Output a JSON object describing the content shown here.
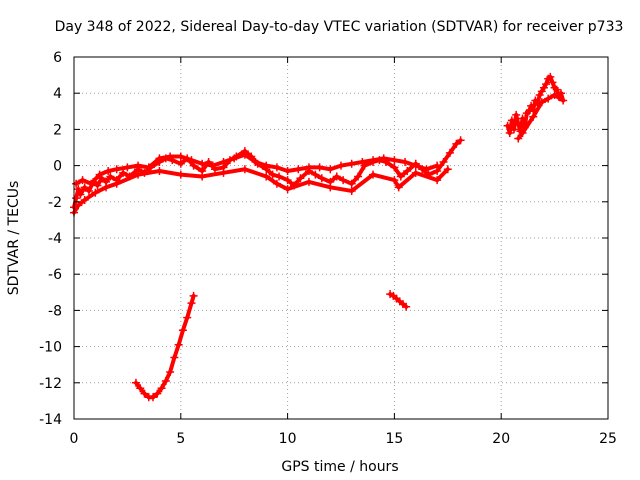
{
  "chart_data": {
    "type": "scatter",
    "title": "Day 348 of 2022, Sidereal Day-to-day VTEC variation (SDTVAR) for receiver p733",
    "xlabel": "GPS time / hours",
    "ylabel": "SDTVAR / TECUs",
    "xlim": [
      0,
      25
    ],
    "ylim": [
      -14,
      6
    ],
    "xticks": [
      0,
      5,
      10,
      15,
      20,
      25
    ],
    "yticks": [
      6,
      4,
      2,
      0,
      -2,
      -4,
      -6,
      -8,
      -10,
      -12,
      -14
    ],
    "grid": true,
    "marker": "plus",
    "color": "#ff0000",
    "series": [
      {
        "name": "main-band",
        "points": [
          [
            0.0,
            -2.3
          ],
          [
            0.1,
            -1.8
          ],
          [
            0.2,
            -1.3
          ],
          [
            0.3,
            -1.6
          ],
          [
            0.5,
            -1.2
          ],
          [
            0.7,
            -1.4
          ],
          [
            0.9,
            -0.9
          ],
          [
            1.1,
            -1.1
          ],
          [
            1.3,
            -0.7
          ],
          [
            1.5,
            -0.9
          ],
          [
            1.7,
            -0.6
          ],
          [
            2.0,
            -0.8
          ],
          [
            2.3,
            -0.4
          ],
          [
            2.6,
            -0.6
          ],
          [
            3.0,
            -0.2
          ],
          [
            3.3,
            -0.4
          ],
          [
            3.6,
            -0.1
          ],
          [
            4.0,
            0.2
          ],
          [
            4.3,
            0.4
          ],
          [
            4.6,
            0.3
          ],
          [
            5.0,
            0.1
          ],
          [
            5.3,
            0.4
          ],
          [
            5.6,
            0.0
          ],
          [
            6.0,
            -0.3
          ],
          [
            6.3,
            0.2
          ],
          [
            6.6,
            -0.2
          ],
          [
            7.0,
            -0.1
          ],
          [
            7.3,
            0.3
          ],
          [
            7.6,
            0.5
          ],
          [
            8.0,
            0.8
          ],
          [
            8.3,
            0.5
          ],
          [
            8.6,
            0.1
          ],
          [
            9.0,
            -0.2
          ],
          [
            9.3,
            -0.5
          ],
          [
            9.6,
            -0.6
          ],
          [
            10.0,
            -0.8
          ],
          [
            10.3,
            -1.1
          ],
          [
            10.6,
            -0.7
          ],
          [
            11.0,
            -0.3
          ],
          [
            11.3,
            -0.5
          ],
          [
            11.6,
            -0.7
          ],
          [
            12.0,
            -0.9
          ],
          [
            12.3,
            -0.6
          ],
          [
            12.6,
            -0.8
          ],
          [
            13.0,
            -1.0
          ],
          [
            13.3,
            -0.6
          ],
          [
            13.6,
            0.0
          ],
          [
            14.0,
            0.2
          ],
          [
            14.3,
            0.3
          ],
          [
            14.6,
            0.2
          ],
          [
            15.0,
            -0.1
          ],
          [
            15.3,
            -0.6
          ],
          [
            15.6,
            -0.3
          ],
          [
            16.0,
            0.1
          ],
          [
            16.3,
            -0.2
          ],
          [
            16.6,
            -0.5
          ],
          [
            17.0,
            -0.3
          ],
          [
            17.3,
            0.2
          ],
          [
            17.6,
            0.7
          ],
          [
            17.9,
            1.2
          ],
          [
            18.1,
            1.4
          ]
        ]
      },
      {
        "name": "main-band-upper",
        "points": [
          [
            0.1,
            -1.0
          ],
          [
            0.4,
            -0.8
          ],
          [
            0.8,
            -1.0
          ],
          [
            1.2,
            -0.5
          ],
          [
            1.6,
            -0.3
          ],
          [
            2.0,
            -0.2
          ],
          [
            2.5,
            -0.1
          ],
          [
            3.0,
            0.0
          ],
          [
            3.5,
            -0.1
          ],
          [
            4.0,
            0.4
          ],
          [
            4.5,
            0.5
          ],
          [
            5.0,
            0.5
          ],
          [
            5.5,
            0.3
          ],
          [
            6.0,
            0.1
          ],
          [
            6.5,
            0.0
          ],
          [
            7.0,
            0.2
          ],
          [
            7.5,
            0.4
          ],
          [
            8.0,
            0.6
          ],
          [
            8.5,
            0.2
          ],
          [
            9.0,
            0.0
          ],
          [
            9.5,
            -0.1
          ],
          [
            10.0,
            -0.3
          ],
          [
            10.5,
            -0.2
          ],
          [
            11.0,
            -0.1
          ],
          [
            11.5,
            -0.1
          ],
          [
            12.0,
            -0.2
          ],
          [
            12.5,
            0.0
          ],
          [
            13.0,
            0.1
          ],
          [
            13.5,
            0.2
          ],
          [
            14.0,
            0.3
          ],
          [
            14.5,
            0.4
          ],
          [
            15.0,
            0.3
          ],
          [
            15.5,
            0.2
          ],
          [
            16.0,
            0.0
          ],
          [
            16.5,
            -0.2
          ],
          [
            17.0,
            0.0
          ]
        ]
      },
      {
        "name": "main-band-lower",
        "points": [
          [
            0.0,
            -2.6
          ],
          [
            0.2,
            -2.2
          ],
          [
            0.5,
            -1.9
          ],
          [
            1.0,
            -1.5
          ],
          [
            1.5,
            -1.2
          ],
          [
            2.0,
            -1.0
          ],
          [
            3.0,
            -0.5
          ],
          [
            4.0,
            -0.3
          ],
          [
            5.0,
            -0.5
          ],
          [
            6.0,
            -0.6
          ],
          [
            7.0,
            -0.4
          ],
          [
            8.0,
            -0.2
          ],
          [
            9.0,
            -0.6
          ],
          [
            9.5,
            -1.0
          ],
          [
            10.0,
            -1.3
          ],
          [
            11.0,
            -0.9
          ],
          [
            12.0,
            -1.2
          ],
          [
            13.0,
            -1.4
          ],
          [
            14.0,
            -0.5
          ],
          [
            15.0,
            -0.8
          ],
          [
            15.2,
            -1.2
          ],
          [
            16.0,
            -0.4
          ],
          [
            17.0,
            -0.8
          ],
          [
            17.5,
            -0.2
          ]
        ]
      },
      {
        "name": "late-segment",
        "points": [
          [
            20.3,
            2.2
          ],
          [
            20.4,
            1.8
          ],
          [
            20.5,
            2.5
          ],
          [
            20.6,
            2.0
          ],
          [
            20.7,
            2.8
          ],
          [
            20.8,
            2.3
          ],
          [
            20.9,
            1.9
          ],
          [
            21.0,
            2.6
          ],
          [
            21.1,
            2.1
          ],
          [
            21.2,
            2.9
          ],
          [
            21.3,
            3.0
          ],
          [
            21.4,
            3.3
          ],
          [
            21.5,
            3.1
          ],
          [
            21.6,
            3.6
          ],
          [
            21.7,
            3.4
          ],
          [
            21.8,
            3.9
          ],
          [
            21.9,
            4.1
          ],
          [
            22.0,
            4.3
          ],
          [
            22.1,
            4.5
          ],
          [
            22.2,
            4.8
          ],
          [
            22.3,
            4.9
          ],
          [
            22.4,
            4.6
          ],
          [
            22.5,
            4.3
          ],
          [
            22.6,
            4.2
          ],
          [
            22.7,
            3.8
          ],
          [
            22.8,
            4.0
          ],
          [
            22.9,
            3.6
          ],
          [
            22.5,
            3.9
          ],
          [
            22.2,
            3.7
          ],
          [
            21.9,
            3.5
          ],
          [
            21.5,
            2.7
          ],
          [
            21.0,
            1.8
          ],
          [
            20.8,
            1.5
          ]
        ]
      },
      {
        "name": "dip-segment",
        "points": [
          [
            2.9,
            -12.0
          ],
          [
            3.1,
            -12.3
          ],
          [
            3.3,
            -12.6
          ],
          [
            3.5,
            -12.8
          ],
          [
            3.7,
            -12.8
          ],
          [
            3.9,
            -12.6
          ],
          [
            4.1,
            -12.3
          ],
          [
            4.3,
            -11.9
          ],
          [
            4.5,
            -11.4
          ],
          [
            4.7,
            -10.6
          ],
          [
            4.9,
            -9.9
          ],
          [
            5.1,
            -9.1
          ],
          [
            5.3,
            -8.4
          ],
          [
            5.5,
            -7.6
          ],
          [
            5.6,
            -7.2
          ]
        ]
      },
      {
        "name": "short-segment",
        "points": [
          [
            14.8,
            -7.1
          ],
          [
            14.95,
            -7.2
          ],
          [
            15.1,
            -7.35
          ],
          [
            15.25,
            -7.5
          ],
          [
            15.4,
            -7.65
          ],
          [
            15.55,
            -7.8
          ]
        ]
      }
    ]
  }
}
